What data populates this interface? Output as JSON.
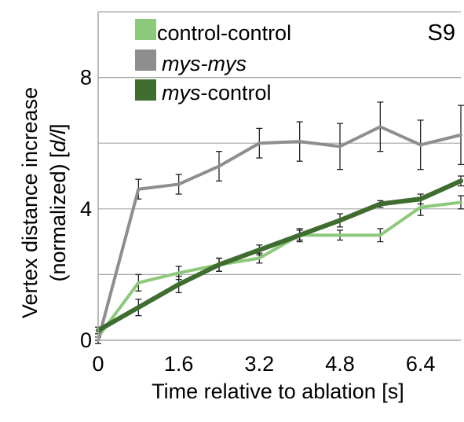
{
  "chart_data": {
    "type": "line",
    "panel_label": "S9",
    "xlabel": "Time relative to ablation [s]",
    "ylabel_line1": "Vertex distance increase",
    "ylabel_line2_prefix": "(normalized) [",
    "ylabel_line2_italic": "d/l",
    "ylabel_line2_suffix": "]",
    "x_ticks": [
      "0",
      "1.6",
      "3.2",
      "4.8",
      "6.4"
    ],
    "y_ticks": [
      "0",
      "4",
      "8"
    ],
    "xlim": [
      0,
      7.2
    ],
    "ylim": [
      0,
      10
    ],
    "grid": true,
    "legend_placement": "top-left",
    "x": [
      0,
      0.8,
      1.6,
      2.4,
      3.2,
      4.0,
      4.8,
      5.6,
      6.4,
      7.2
    ],
    "series": [
      {
        "name": "control-control",
        "color": "#8cc97a",
        "values": [
          0.1,
          1.75,
          2.05,
          2.3,
          2.5,
          3.2,
          3.2,
          3.2,
          4.05,
          4.2
        ],
        "errors": [
          0.1,
          0.25,
          0.2,
          0.2,
          0.15,
          0.15,
          0.15,
          0.2,
          0.25,
          0.2
        ]
      },
      {
        "name": "mys-mys",
        "color": "#8e8e8e",
        "values": [
          0.0,
          4.6,
          4.75,
          5.3,
          6.0,
          6.05,
          5.9,
          6.5,
          5.95,
          6.25
        ],
        "errors": [
          0.1,
          0.3,
          0.3,
          0.45,
          0.45,
          0.6,
          0.7,
          0.75,
          0.75,
          0.9
        ]
      },
      {
        "name": "mys-control",
        "color": "#3f6d30",
        "values": [
          0.3,
          1.0,
          1.7,
          2.3,
          2.75,
          3.2,
          3.65,
          4.15,
          4.3,
          4.85
        ],
        "errors": [
          0.1,
          0.25,
          0.25,
          0.2,
          0.15,
          0.2,
          0.2,
          0.1,
          0.15,
          0.15
        ]
      }
    ],
    "legend": [
      {
        "text_italic": "",
        "text_plain": "control-control",
        "color": "#8cc97a"
      },
      {
        "text_italic": "mys-mys",
        "text_plain": "",
        "color": "#8e8e8e"
      },
      {
        "text_italic": "mys",
        "text_plain": "-control",
        "color": "#3f6d30"
      }
    ]
  }
}
